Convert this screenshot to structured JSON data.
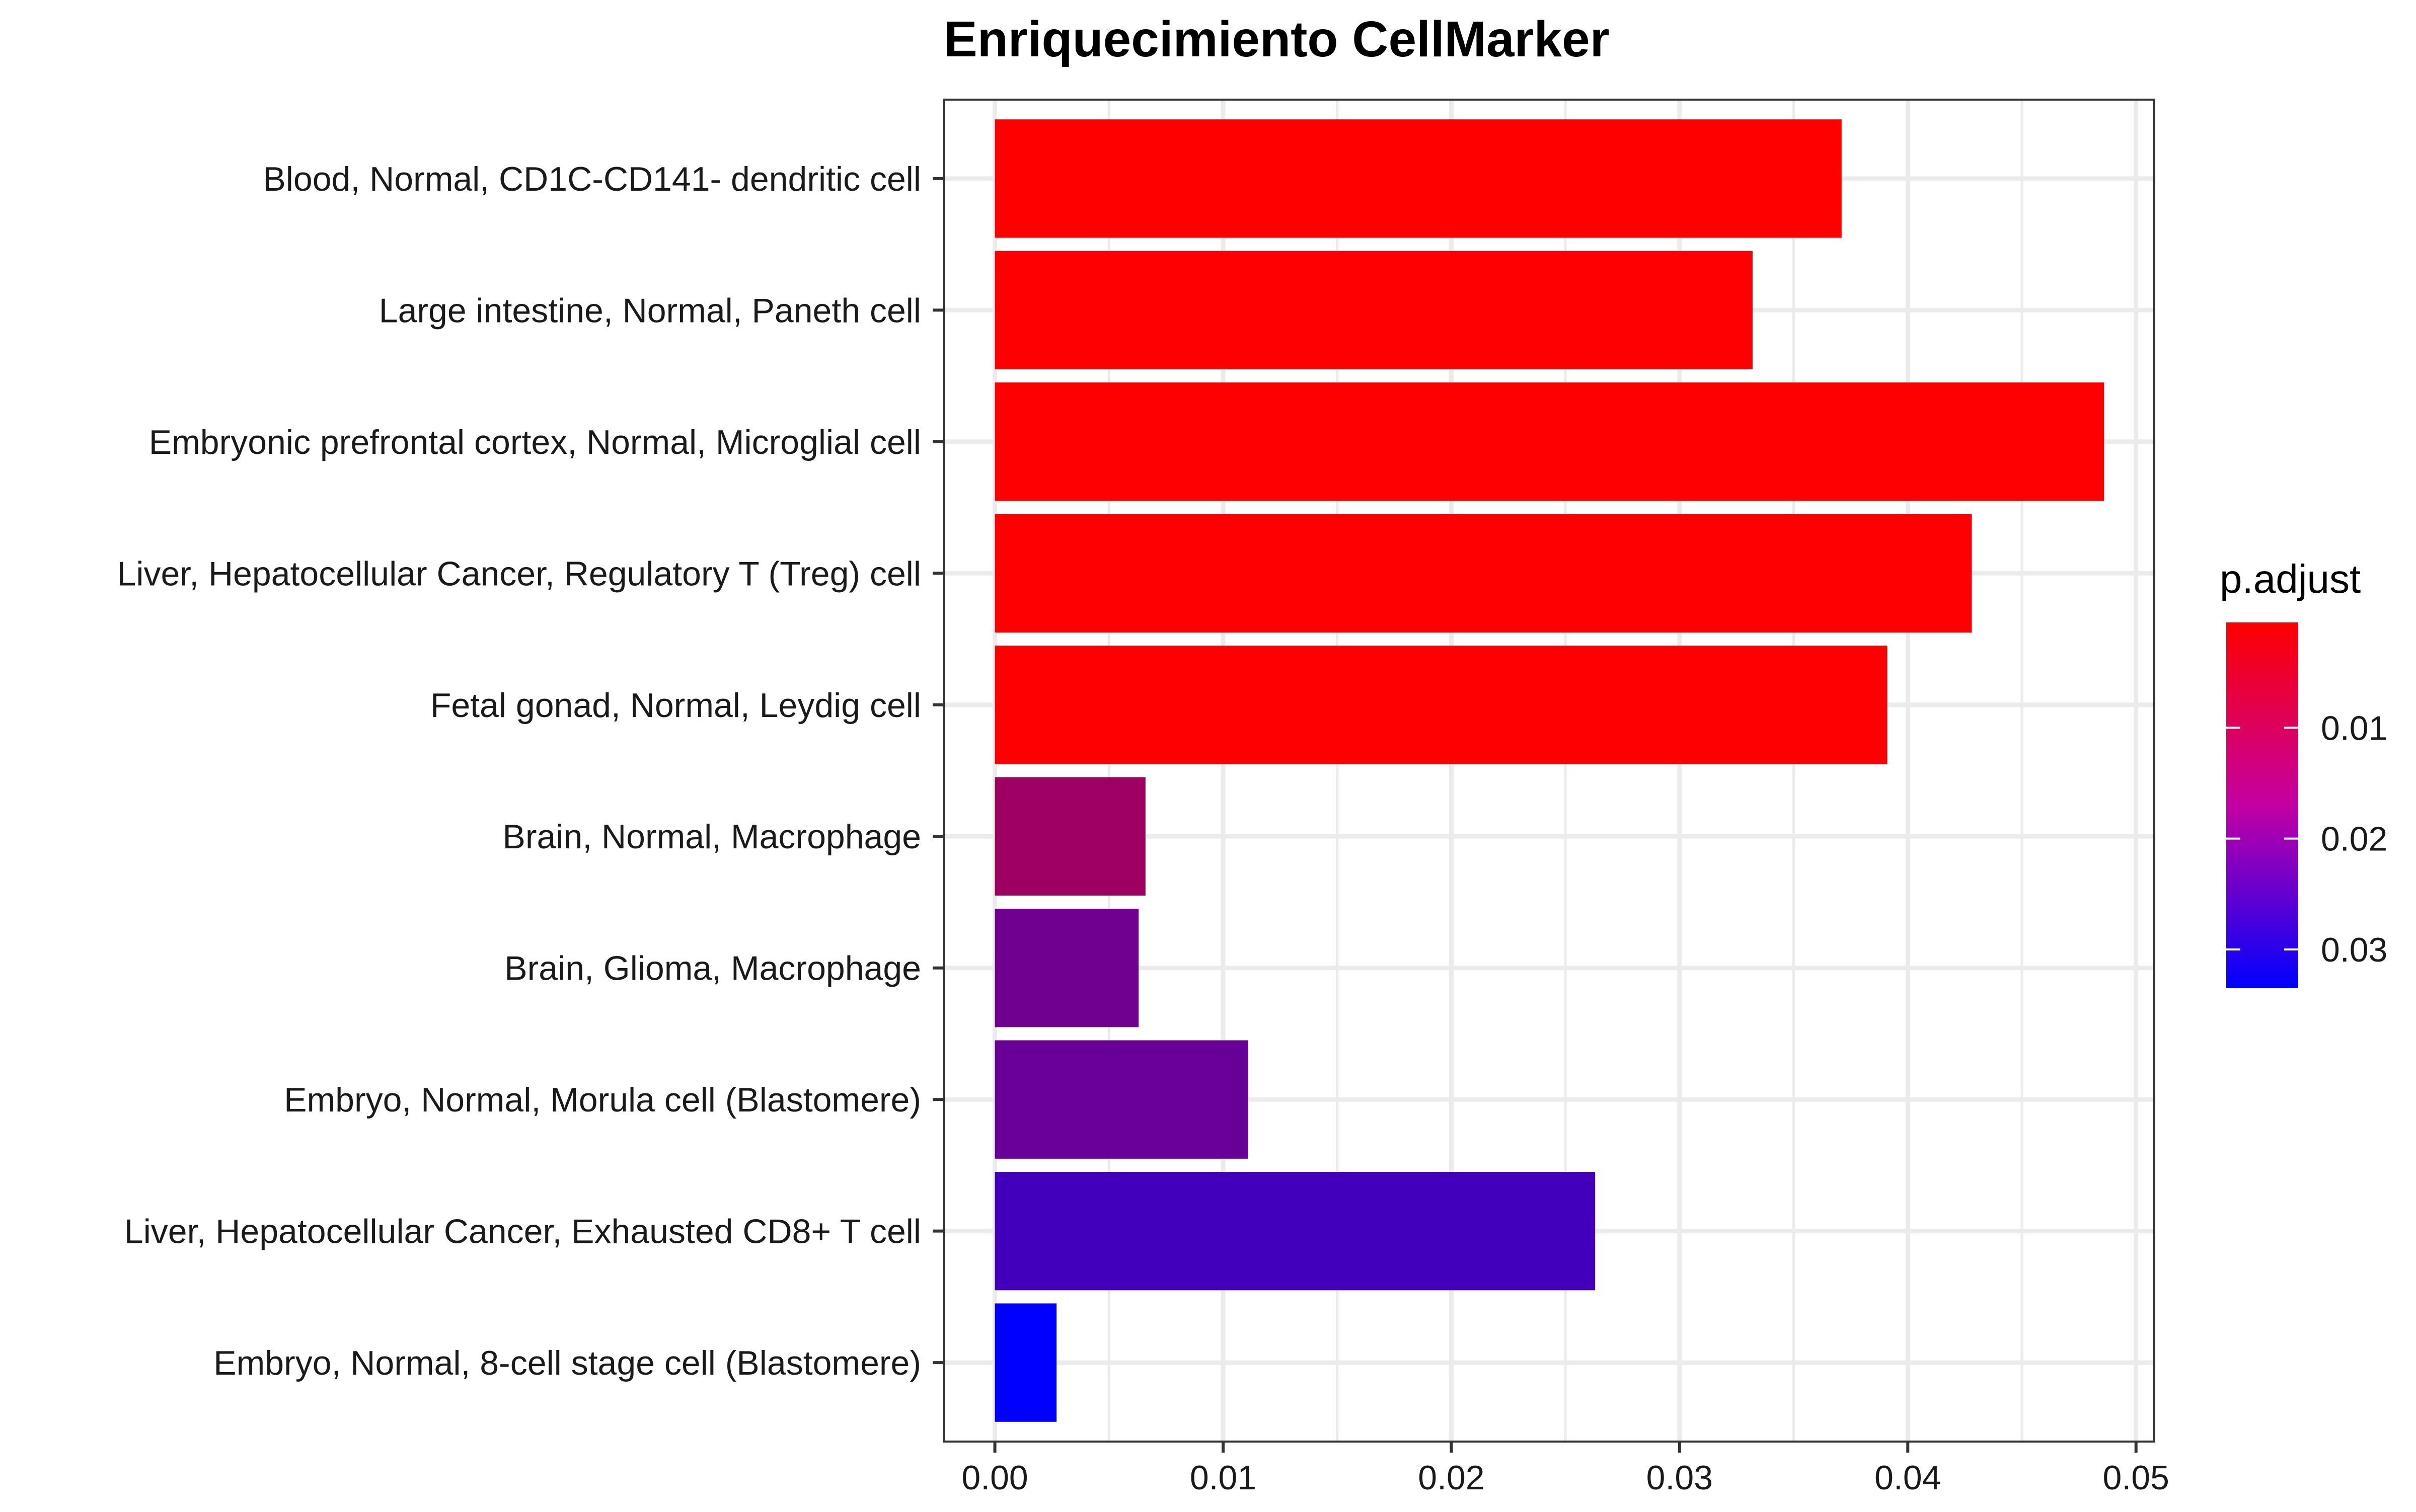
{
  "chart_data": {
    "type": "bar",
    "orientation": "horizontal",
    "title": "Enriquecimiento CellMarker",
    "xlabel": "",
    "ylabel": "",
    "xlim": [
      -0.00224,
      0.0508
    ],
    "x_ticks": [
      0,
      0.01,
      0.02,
      0.03,
      0.04,
      0.05
    ],
    "x_tick_labels": [
      "0.00",
      "0.01",
      "0.02",
      "0.03",
      "0.04",
      "0.05"
    ],
    "categories": [
      "Blood, Normal, CD1C-CD141- dendritic cell",
      "Large intestine, Normal, Paneth cell",
      "Embryonic prefrontal cortex, Normal, Microglial cell",
      "Liver, Hepatocellular Cancer, Regulatory T (Treg) cell",
      "Fetal gonad, Normal, Leydig cell",
      "Brain, Normal, Macrophage",
      "Brain, Glioma, Macrophage",
      "Embryo, Normal, Morula cell (Blastomere)",
      "Liver, Hepatocellular Cancer, Exhausted CD8+ T cell",
      "Embryo, Normal, 8-cell stage cell (Blastomere)"
    ],
    "values": [
      0.0371,
      0.0332,
      0.0486,
      0.0428,
      0.0391,
      0.0066,
      0.0063,
      0.0111,
      0.0263,
      0.0027
    ],
    "p_adjust": [
      0.0005,
      0.0006,
      0.0006,
      0.0006,
      0.0006,
      0.013,
      0.019,
      0.02,
      0.025,
      0.0335
    ],
    "grid": true,
    "legend": {
      "title": "p.adjust",
      "position": "right",
      "type": "colorbar",
      "range": [
        0.0005,
        0.0335
      ],
      "ticks": [
        0.01,
        0.02,
        0.03
      ],
      "tick_labels": [
        "0.01",
        "0.02",
        "0.03"
      ],
      "color_low_value": "#ff0000",
      "color_high_value": "#0000ff"
    },
    "colors": {
      "bar_low_padj": "#ff0000",
      "bar_high_padj": "#0000ff",
      "gridline": "#ebebeb",
      "panel_border": "#333333",
      "text": "#1a1a1a"
    }
  }
}
